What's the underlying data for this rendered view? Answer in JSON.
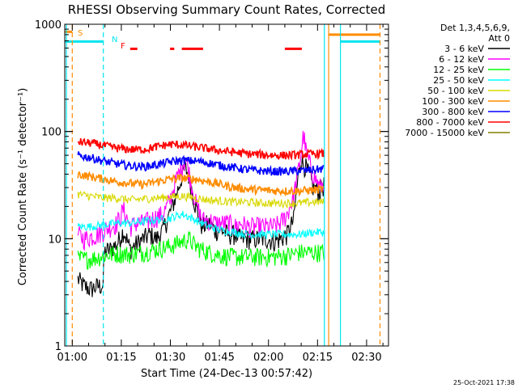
{
  "chart_data": {
    "type": "line",
    "title": "RHESSI Observing Summary Count Rates, Corrected",
    "xlabel": "Start Time (24-Dec-13 00:57:42)",
    "ylabel": "Corrected Count Rate (s⁻¹ detector⁻¹)",
    "yscale": "log",
    "ylim": [
      1,
      1000
    ],
    "x_unit": "minutes after 00:57:42",
    "xlim": [
      0,
      99
    ],
    "x_tick_labels": [
      "01:00",
      "01:15",
      "01:30",
      "01:45",
      "02:00",
      "02:15",
      "02:30"
    ],
    "x_tick_values": [
      2.3,
      17.3,
      32.3,
      47.3,
      62.3,
      77.3,
      92.3
    ],
    "y_tick_labels": [
      "1",
      "10",
      "100",
      "1000"
    ],
    "y_tick_values": [
      1,
      10,
      100,
      1000
    ],
    "legend": {
      "placement": "right",
      "header": [
        "Det 1,3,4,5,6,9,",
        "Att 0"
      ]
    },
    "timestamp": "25-Oct-2021 17:38",
    "flags": [
      {
        "label": "S",
        "color": "#ff8c00",
        "line_x": 2.3,
        "bar_y": 850
      },
      {
        "label": "N",
        "color": "#00e5ee",
        "bar_y": 690
      },
      {
        "label": "F",
        "color": "#ff0000",
        "bar_y": 580
      }
    ],
    "vertical_markers": [
      {
        "x": 0.5,
        "color": "#00e5ee",
        "style": "solid"
      },
      {
        "x": 2.3,
        "color": "#ff8c00",
        "style": "dashed"
      },
      {
        "x": 11.8,
        "color": "#00e5ee",
        "style": "dashed"
      },
      {
        "x": 79.4,
        "color": "#00e5ee",
        "style": "solid"
      },
      {
        "x": 80.7,
        "color": "#ff8c00",
        "style": "solid"
      },
      {
        "x": 84.3,
        "color": "#00e5ee",
        "style": "solid"
      },
      {
        "x": 96.4,
        "color": "#ff8c00",
        "style": "dashed"
      }
    ],
    "flag_bars": [
      {
        "flag": "S",
        "x_start": 0,
        "x_end": 2.3,
        "y": 850,
        "color": "#ff8c00"
      },
      {
        "flag": "S",
        "x_start": 80.7,
        "x_end": 96.4,
        "y": 800,
        "color": "#ff8c00"
      },
      {
        "flag": "N",
        "x_start": 0,
        "x_end": 11.8,
        "y": 690,
        "color": "#00e5ee"
      },
      {
        "flag": "N",
        "x_start": 84.3,
        "x_end": 96.4,
        "y": 690,
        "color": "#00e5ee"
      },
      {
        "flag": "F",
        "x_start": 20.0,
        "x_end": 22.2,
        "y": 590,
        "color": "#ff0000"
      },
      {
        "flag": "F",
        "x_start": 32.2,
        "x_end": 33.5,
        "y": 590,
        "color": "#ff0000"
      },
      {
        "flag": "F",
        "x_start": 35.8,
        "x_end": 42.3,
        "y": 590,
        "color": "#ff0000"
      },
      {
        "flag": "F",
        "x_start": 67.3,
        "x_end": 72.5,
        "y": 590,
        "color": "#ff0000"
      }
    ],
    "series": [
      {
        "name": "3 - 6 keV",
        "color": "#000000",
        "x": [
          4,
          6,
          8,
          10,
          11.8,
          12,
          14,
          16,
          18,
          20,
          22,
          24,
          26,
          28,
          30,
          32,
          34,
          36,
          37,
          38,
          40,
          42,
          44,
          46,
          48,
          50,
          52,
          54,
          56,
          58,
          60,
          62,
          64,
          66,
          68,
          70,
          71,
          72,
          74,
          76,
          78,
          79.4
        ],
        "y": [
          4.2,
          3.6,
          3.4,
          3.6,
          3.7,
          7.5,
          8,
          9,
          12,
          8,
          9,
          10,
          11,
          10,
          12,
          17,
          25,
          40,
          45,
          38,
          20,
          13,
          14,
          12,
          12,
          11,
          11,
          10,
          10,
          10,
          10,
          10,
          9.5,
          10,
          11,
          15,
          30,
          55,
          45,
          30,
          28,
          32
        ]
      },
      {
        "name": "6 - 12 keV",
        "color": "#ff00ff",
        "x": [
          4,
          6,
          8,
          10,
          12,
          14,
          16,
          18,
          20,
          22,
          24,
          26,
          28,
          30,
          32,
          34,
          36,
          37,
          38,
          40,
          42,
          44,
          46,
          48,
          50,
          52,
          54,
          56,
          58,
          60,
          62,
          64,
          66,
          68,
          70,
          72,
          73,
          74,
          76,
          78,
          79.4
        ],
        "y": [
          11,
          10,
          10.5,
          11,
          12,
          13,
          14,
          19,
          13,
          14,
          14,
          15,
          16,
          17,
          22,
          35,
          50,
          55,
          42,
          22,
          15,
          15,
          14,
          14,
          14,
          13,
          14,
          13,
          13,
          13,
          13,
          13,
          14,
          17,
          25,
          55,
          95,
          60,
          40,
          30,
          35
        ]
      },
      {
        "name": "12 - 25 keV",
        "color": "#00ff00",
        "x": [
          4,
          8,
          12,
          16,
          20,
          24,
          28,
          32,
          36,
          38,
          40,
          44,
          48,
          52,
          56,
          60,
          64,
          68,
          72,
          76,
          79.4
        ],
        "y": [
          6.5,
          6.5,
          7,
          7.3,
          7.2,
          7.5,
          8,
          8.5,
          9.5,
          10,
          8.5,
          7.5,
          7,
          6.8,
          6.8,
          6.8,
          6.8,
          7,
          7.5,
          7.5,
          7.5
        ]
      },
      {
        "name": "25 - 50 keV",
        "color": "#00ffff",
        "x": [
          4,
          8,
          12,
          16,
          20,
          24,
          28,
          32,
          36,
          40,
          44,
          48,
          52,
          56,
          60,
          64,
          68,
          72,
          76,
          79.4
        ],
        "y": [
          13,
          13,
          13.5,
          14,
          14,
          14.5,
          15,
          15.5,
          17,
          15,
          13,
          12,
          11.5,
          11,
          11,
          11,
          11,
          11,
          11.5,
          11.5
        ]
      },
      {
        "name": "50 - 100 keV",
        "color": "#d8d800",
        "x": [
          4,
          8,
          12,
          16,
          20,
          24,
          28,
          32,
          36,
          40,
          44,
          48,
          52,
          56,
          60,
          64,
          68,
          72,
          76,
          79.4
        ],
        "y": [
          26,
          25,
          24,
          24,
          23,
          23.5,
          24,
          24.5,
          25,
          24,
          23,
          22.5,
          22,
          22,
          21.5,
          21.5,
          21.5,
          21.5,
          22,
          22
        ]
      },
      {
        "name": "100 - 300 keV",
        "color": "#ff8c00",
        "x": [
          4,
          8,
          12,
          16,
          20,
          24,
          28,
          32,
          36,
          40,
          44,
          48,
          52,
          56,
          60,
          64,
          68,
          72,
          76,
          79.4
        ],
        "y": [
          40,
          38,
          36,
          34,
          33,
          32,
          34,
          36,
          37,
          36,
          34,
          32,
          30,
          29,
          28.5,
          28,
          28,
          28,
          28.5,
          29
        ]
      },
      {
        "name": "300 - 800 keV",
        "color": "#0000ff",
        "x": [
          4,
          8,
          12,
          16,
          20,
          24,
          28,
          32,
          36,
          40,
          44,
          48,
          52,
          56,
          60,
          64,
          68,
          72,
          76,
          79.4
        ],
        "y": [
          60,
          57,
          53,
          50,
          48,
          47,
          49,
          52,
          54,
          53,
          51,
          48,
          46,
          44,
          43,
          42.5,
          42.5,
          43,
          44,
          45
        ]
      },
      {
        "name": "800 - 7000 keV",
        "color": "#ff0000",
        "x": [
          4,
          8,
          12,
          16,
          20,
          24,
          28,
          32,
          36,
          40,
          44,
          48,
          52,
          56,
          60,
          64,
          68,
          72,
          76,
          79.4
        ],
        "y": [
          80,
          78,
          74,
          70,
          68,
          68,
          72,
          76,
          75,
          72,
          69,
          66,
          64,
          62,
          61,
          60,
          60,
          61,
          62,
          62
        ]
      },
      {
        "name": "7000 - 15000 keV",
        "color": "#808000",
        "x": [],
        "y": []
      }
    ]
  }
}
